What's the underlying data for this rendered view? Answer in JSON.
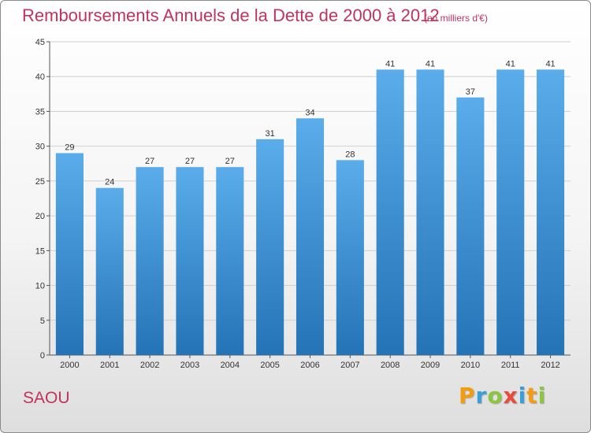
{
  "chart_data": {
    "type": "bar",
    "title": "Remboursements Annuels de la Dette de 2000 à 2012",
    "subtitle": "(en milliers d'€)",
    "categories": [
      "2000",
      "2001",
      "2002",
      "2003",
      "2004",
      "2005",
      "2006",
      "2007",
      "2008",
      "2009",
      "2010",
      "2011",
      "2012"
    ],
    "values": [
      29,
      24,
      27,
      27,
      27,
      31,
      34,
      28,
      41,
      41,
      37,
      41,
      41
    ],
    "xlabel": "",
    "ylabel": "",
    "ylim": [
      0,
      45
    ],
    "yticks": [
      0,
      5,
      10,
      15,
      20,
      25,
      30,
      35,
      40,
      45
    ],
    "grid": true,
    "bar_color_top": "#5aacea",
    "bar_color_bottom": "#2473b6"
  },
  "commune": "SAOU",
  "logo": {
    "letters": [
      "P",
      "r",
      "o",
      "x",
      "i",
      "t",
      "i"
    ],
    "colors": [
      "#f39c12",
      "#3a9fd8",
      "#8cc63f",
      "#e74c3c",
      "#3a9fd8",
      "#f39c12",
      "#8cc63f"
    ]
  }
}
